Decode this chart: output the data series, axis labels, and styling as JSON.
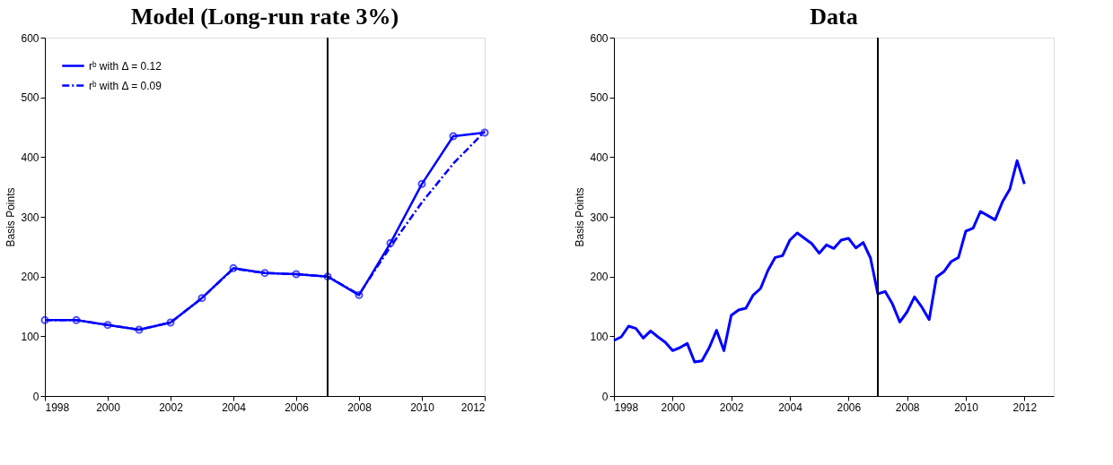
{
  "chart_data": [
    {
      "type": "line",
      "title": "Model (Long-run rate 3%)",
      "ylabel": "Basis Points",
      "legend": "top left",
      "grid": false,
      "x": [
        1998,
        1999,
        2000,
        2001,
        2002,
        2003,
        2004,
        2005,
        2006,
        2007,
        2008,
        2009,
        2010,
        2011,
        2012
      ],
      "series": [
        {
          "name": "rᵇ with  Δ = 0.12",
          "color": "#0000ff",
          "marker": "circle",
          "line_style": "solid",
          "values": [
            127,
            127,
            119,
            111,
            123,
            164,
            214,
            206,
            204,
            200,
            169,
            256,
            355,
            435,
            441
          ]
        },
        {
          "name": "rᵇ with  Δ = 0.09",
          "color": "#0000ff",
          "marker": "none",
          "line_style": "dashdot",
          "values": [
            127,
            127,
            119,
            111,
            123,
            164,
            213,
            206,
            204,
            200,
            170,
            250,
            324,
            389,
            443
          ]
        }
      ],
      "xlim": [
        1998,
        2012
      ],
      "xticks": [
        1998,
        2000,
        2002,
        2004,
        2006,
        2008,
        2010,
        2012
      ],
      "ylim": [
        0,
        600
      ],
      "yticks": [
        0,
        100,
        200,
        300,
        400,
        500,
        600
      ],
      "ref_lines": [
        {
          "axis": "x",
          "value": 2007,
          "color": "#000000"
        }
      ]
    },
    {
      "type": "line",
      "title": "Data",
      "ylabel": "Basis Points",
      "legend": false,
      "grid": false,
      "x": [
        1998,
        1998.25,
        1998.5,
        1998.75,
        1999,
        1999.25,
        1999.5,
        1999.75,
        2000,
        2000.25,
        2000.5,
        2000.75,
        2001,
        2001.25,
        2001.5,
        2001.75,
        2002,
        2002.25,
        2002.5,
        2002.75,
        2003,
        2003.25,
        2003.5,
        2003.75,
        2004,
        2004.25,
        2004.5,
        2004.75,
        2005,
        2005.25,
        2005.5,
        2005.75,
        2006,
        2006.25,
        2006.5,
        2006.75,
        2007,
        2007.25,
        2007.5,
        2007.75,
        2008,
        2008.25,
        2008.5,
        2008.75,
        2009,
        2009.25,
        2009.5,
        2009.75,
        2010,
        2010.25,
        2010.5,
        2010.75,
        2011,
        2011.25,
        2011.5,
        2011.75,
        2012
      ],
      "series": [
        {
          "color": "#0000ff",
          "marker": "none",
          "line_style": "solid",
          "values": [
            93,
            99,
            117,
            113,
            97,
            109,
            99,
            90,
            76,
            81,
            88,
            57,
            59,
            81,
            110,
            76,
            135,
            144,
            147,
            169,
            180,
            210,
            232,
            235,
            261,
            273,
            264,
            255,
            239,
            253,
            247,
            261,
            264,
            248,
            257,
            231,
            171,
            175,
            154,
            124,
            141,
            166,
            149,
            128,
            199,
            208,
            225,
            232,
            276,
            281,
            309,
            302,
            295,
            325,
            346,
            394,
            355
          ]
        }
      ],
      "xlim": [
        1998,
        2013
      ],
      "xticks": [
        1998,
        2000,
        2002,
        2004,
        2006,
        2008,
        2010,
        2012
      ],
      "ylim": [
        0,
        600
      ],
      "yticks": [
        0,
        100,
        200,
        300,
        400,
        500,
        600
      ],
      "ref_lines": [
        {
          "axis": "x",
          "value": 2007,
          "color": "#000000"
        }
      ]
    }
  ]
}
